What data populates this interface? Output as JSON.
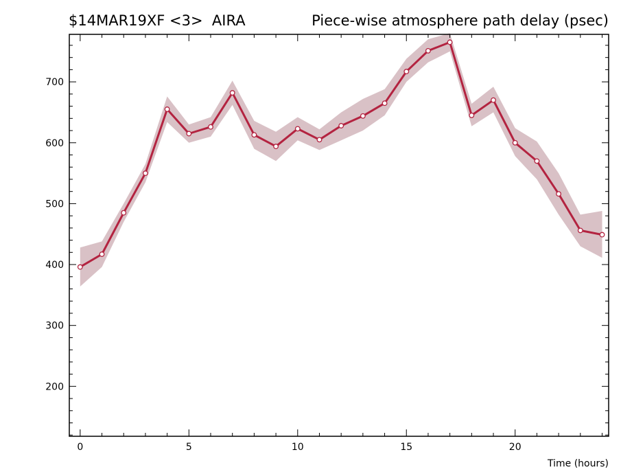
{
  "header": {
    "left": "$14MAR19XF <3>  AIRA",
    "right": "Piece-wise atmosphere path delay (psec)"
  },
  "colors": {
    "line": "#b32340",
    "band": "#d9c1c6",
    "axis": "#000000",
    "marker_fill": "#ffffff"
  },
  "chart_data": {
    "type": "line",
    "title": "Piece-wise atmosphere path delay (psec)",
    "xlabel": "Time (hours)",
    "ylabel": "",
    "xlim": [
      -0.5,
      24.3
    ],
    "ylim": [
      118,
      778
    ],
    "xticks": [
      0,
      5,
      10,
      15,
      20
    ],
    "yticks": [
      200,
      300,
      400,
      500,
      600,
      700
    ],
    "grid": false,
    "series": [
      {
        "x": [
          0,
          1,
          2,
          3,
          4,
          5,
          6,
          7,
          8,
          9,
          10,
          11,
          12,
          13,
          14,
          15,
          16,
          17,
          18,
          19,
          20,
          21,
          22,
          23,
          24
        ],
        "values": [
          396,
          417,
          485,
          550,
          655,
          615,
          626,
          682,
          613,
          594,
          623,
          605,
          628,
          644,
          665,
          717,
          751,
          765,
          645,
          670,
          600,
          570,
          516,
          456,
          449
        ],
        "upper": [
          428,
          438,
          500,
          565,
          676,
          630,
          642,
          702,
          636,
          618,
          642,
          622,
          650,
          672,
          688,
          738,
          770,
          780,
          664,
          692,
          624,
          602,
          550,
          482,
          488
        ],
        "lower": [
          364,
          396,
          470,
          535,
          634,
          600,
          610,
          662,
          590,
          570,
          604,
          588,
          604,
          620,
          645,
          700,
          732,
          750,
          627,
          650,
          578,
          540,
          482,
          430,
          411
        ]
      }
    ]
  }
}
